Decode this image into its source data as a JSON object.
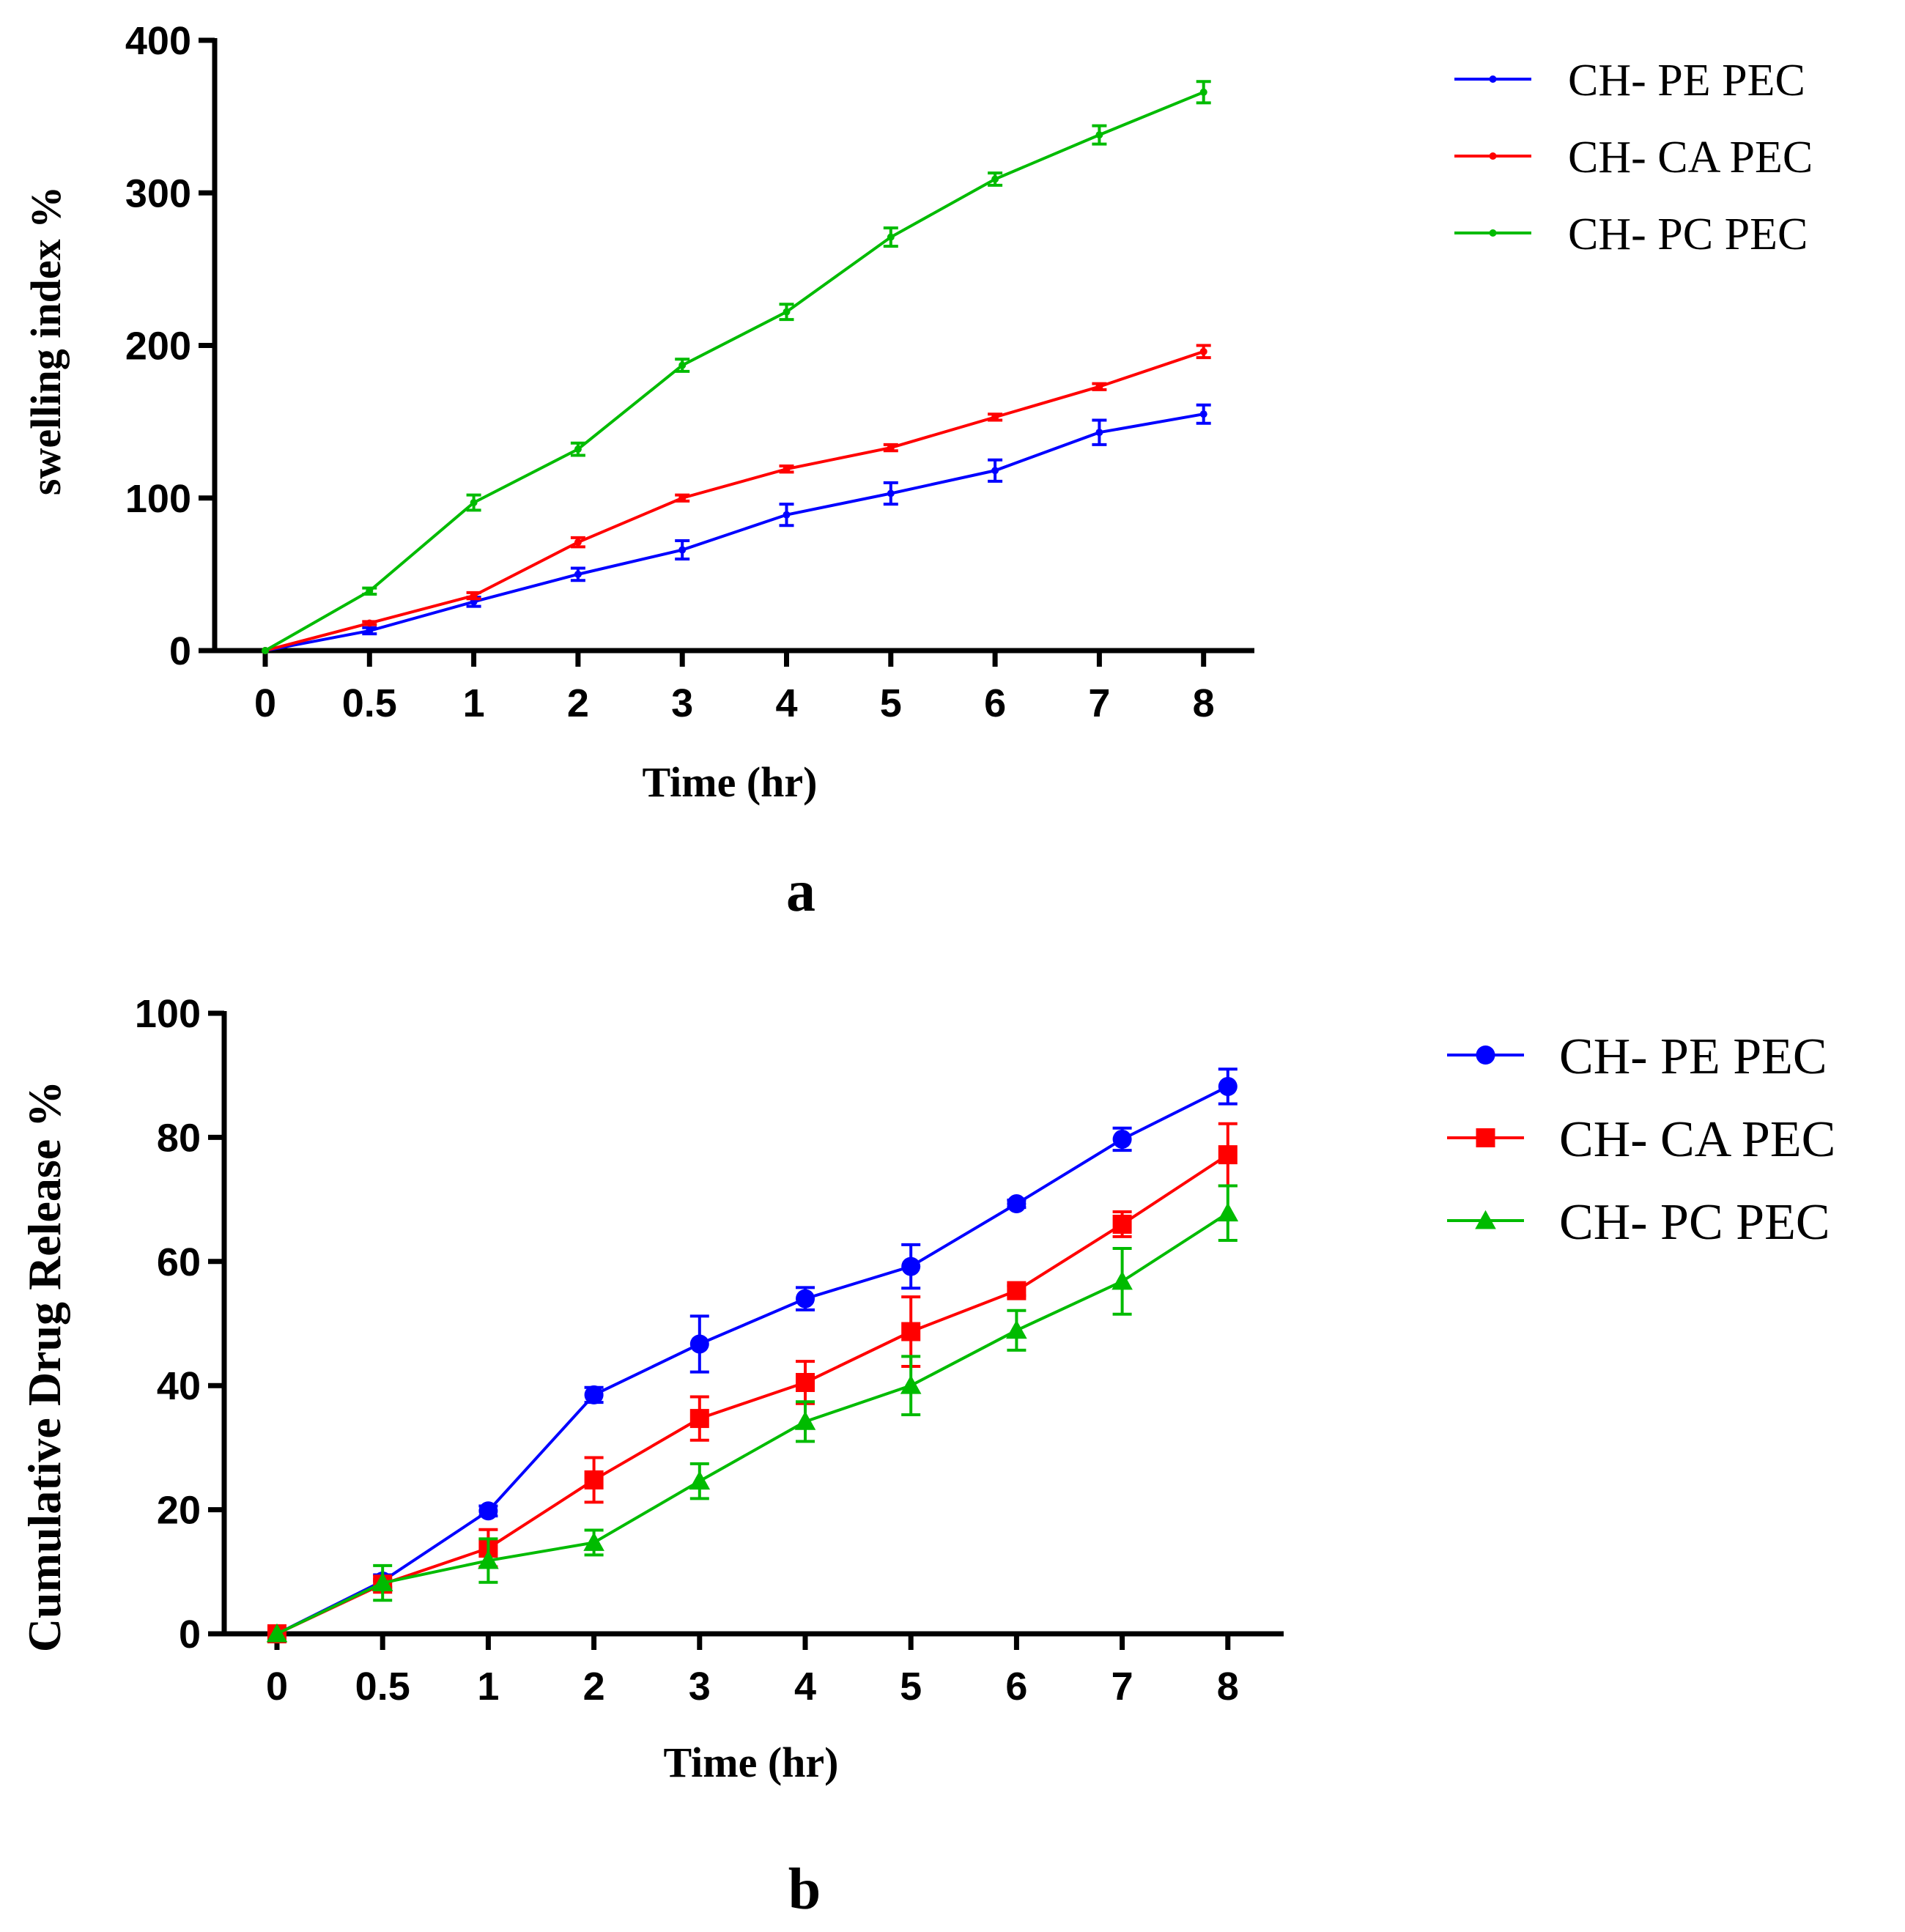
{
  "chart_data": [
    {
      "type": "line",
      "panel_label": "a",
      "xlabel": "Time (hr)",
      "ylabel": "swelling index %",
      "categories": [
        "0",
        "0.5",
        "1",
        "2",
        "3",
        "4",
        "5",
        "6",
        "7",
        "8"
      ],
      "ylim": [
        0,
        400
      ],
      "yticks": [
        "0",
        "100",
        "200",
        "300",
        "400"
      ],
      "legend_position": "top-right",
      "grid": false,
      "series": [
        {
          "name": "CH- PE PEC",
          "color": "#0000ff",
          "marker": "dot",
          "values": [
            0,
            13,
            32,
            50,
            66,
            89,
            103,
            118,
            143,
            155
          ],
          "errors": [
            0,
            2,
            3,
            4,
            6,
            7,
            7,
            7,
            8,
            6
          ]
        },
        {
          "name": "CH- CA PEC",
          "color": "#ff0000",
          "marker": "dot",
          "values": [
            0,
            18,
            36,
            71,
            100,
            119,
            133,
            153,
            173,
            196
          ],
          "errors": [
            0,
            1,
            2,
            3,
            2,
            2,
            2,
            2,
            2,
            4
          ]
        },
        {
          "name": "CH- PC PEC",
          "color": "#00bb00",
          "marker": "dot",
          "values": [
            0,
            39,
            97,
            132,
            187,
            222,
            271,
            309,
            338,
            366
          ],
          "errors": [
            0,
            2,
            5,
            4,
            4,
            5,
            6,
            4,
            6,
            7
          ]
        }
      ]
    },
    {
      "type": "line",
      "panel_label": "b",
      "xlabel": "Time (hr)",
      "ylabel": "Cumulative Drug Release %",
      "categories": [
        "0",
        "0.5",
        "1",
        "2",
        "3",
        "4",
        "5",
        "6",
        "7",
        "8"
      ],
      "ylim": [
        0,
        100
      ],
      "yticks": [
        "0",
        "20",
        "40",
        "60",
        "80",
        "100"
      ],
      "legend_position": "top-right",
      "grid": false,
      "series": [
        {
          "name": "CH- PE PEC",
          "color": "#0000ff",
          "marker": "circle",
          "values": [
            0,
            8.5,
            19.8,
            38.5,
            46.7,
            54.0,
            59.2,
            69.3,
            79.7,
            88.2
          ],
          "errors": [
            0,
            1.0,
            0.8,
            1.2,
            4.5,
            1.8,
            3.5,
            0.6,
            1.8,
            2.8
          ]
        },
        {
          "name": "CH- CA PEC",
          "color": "#ff0000",
          "marker": "square",
          "values": [
            0,
            8.0,
            13.8,
            24.8,
            34.7,
            40.5,
            48.7,
            55.3,
            66.0,
            77.2
          ],
          "errors": [
            0,
            0.8,
            3.0,
            3.6,
            3.5,
            3.4,
            5.6,
            0.8,
            2.0,
            5.0
          ]
        },
        {
          "name": "CH- PC PEC",
          "color": "#00bb00",
          "marker": "triangle",
          "values": [
            0,
            8.2,
            11.8,
            14.7,
            24.6,
            34.2,
            40.0,
            48.9,
            56.8,
            67.8
          ],
          "errors": [
            0,
            2.8,
            3.5,
            2.0,
            2.8,
            3.2,
            4.7,
            3.2,
            5.3,
            4.4
          ]
        }
      ]
    }
  ]
}
